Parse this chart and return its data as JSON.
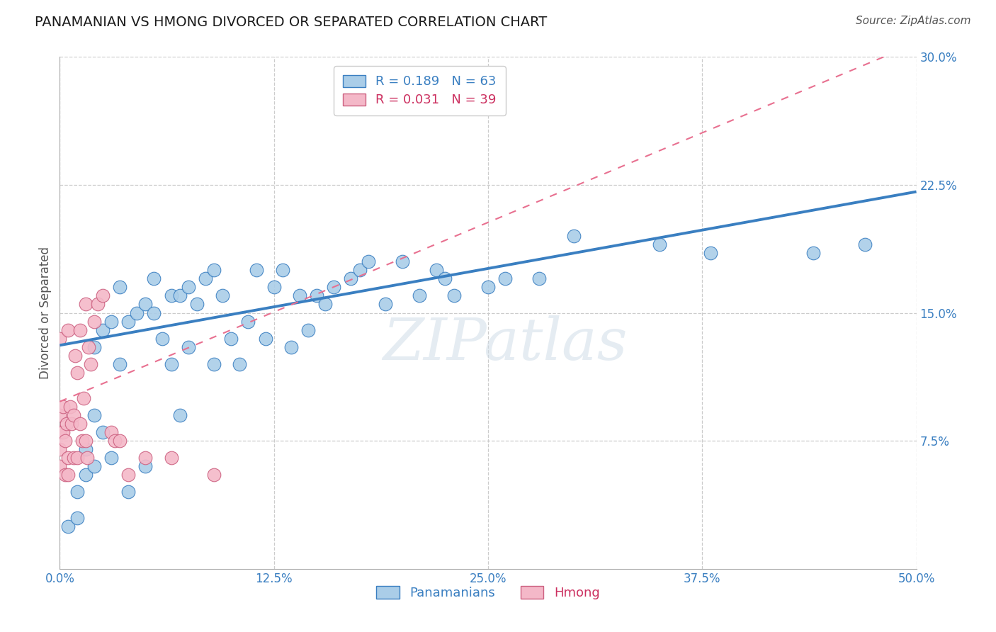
{
  "title": "PANAMANIAN VS HMONG DIVORCED OR SEPARATED CORRELATION CHART",
  "source": "Source: ZipAtlas.com",
  "ylabel_label": "Divorced or Separated",
  "xlim": [
    0.0,
    0.5
  ],
  "ylim": [
    0.0,
    0.3
  ],
  "xticks": [
    0.0,
    0.125,
    0.25,
    0.375,
    0.5
  ],
  "xticklabels": [
    "0.0%",
    "12.5%",
    "25.0%",
    "37.5%",
    "50.0%"
  ],
  "yticks": [
    0.075,
    0.15,
    0.225,
    0.3
  ],
  "yticklabels": [
    "7.5%",
    "15.0%",
    "22.5%",
    "30.0%"
  ],
  "blue_color": "#aacde8",
  "pink_color": "#f4b8c8",
  "blue_line_color": "#3a7fc1",
  "pink_line_color": "#e87090",
  "R_blue": 0.189,
  "N_blue": 63,
  "R_pink": 0.031,
  "N_pink": 39,
  "legend_label_blue": "Panamanians",
  "legend_label_pink": "Hmong",
  "blue_x": [
    0.005,
    0.01,
    0.01,
    0.015,
    0.015,
    0.02,
    0.02,
    0.02,
    0.025,
    0.025,
    0.03,
    0.03,
    0.035,
    0.035,
    0.04,
    0.04,
    0.045,
    0.05,
    0.05,
    0.055,
    0.055,
    0.06,
    0.065,
    0.065,
    0.07,
    0.07,
    0.075,
    0.075,
    0.08,
    0.085,
    0.09,
    0.09,
    0.095,
    0.1,
    0.105,
    0.11,
    0.115,
    0.12,
    0.125,
    0.13,
    0.135,
    0.14,
    0.145,
    0.15,
    0.155,
    0.16,
    0.17,
    0.175,
    0.18,
    0.19,
    0.2,
    0.21,
    0.22,
    0.225,
    0.23,
    0.25,
    0.26,
    0.28,
    0.3,
    0.35,
    0.38,
    0.44,
    0.47
  ],
  "blue_y": [
    0.025,
    0.03,
    0.045,
    0.055,
    0.07,
    0.06,
    0.09,
    0.13,
    0.08,
    0.14,
    0.065,
    0.145,
    0.12,
    0.165,
    0.045,
    0.145,
    0.15,
    0.06,
    0.155,
    0.15,
    0.17,
    0.135,
    0.12,
    0.16,
    0.09,
    0.16,
    0.13,
    0.165,
    0.155,
    0.17,
    0.12,
    0.175,
    0.16,
    0.135,
    0.12,
    0.145,
    0.175,
    0.135,
    0.165,
    0.175,
    0.13,
    0.16,
    0.14,
    0.16,
    0.155,
    0.165,
    0.17,
    0.175,
    0.18,
    0.155,
    0.18,
    0.16,
    0.175,
    0.17,
    0.16,
    0.165,
    0.17,
    0.17,
    0.195,
    0.19,
    0.185,
    0.185,
    0.19
  ],
  "pink_x": [
    0.0,
    0.0,
    0.0,
    0.0,
    0.0,
    0.002,
    0.002,
    0.003,
    0.003,
    0.004,
    0.005,
    0.005,
    0.005,
    0.006,
    0.007,
    0.008,
    0.008,
    0.009,
    0.01,
    0.01,
    0.012,
    0.012,
    0.013,
    0.014,
    0.015,
    0.015,
    0.016,
    0.017,
    0.018,
    0.02,
    0.022,
    0.025,
    0.03,
    0.032,
    0.035,
    0.04,
    0.05,
    0.065,
    0.09
  ],
  "pink_y": [
    0.06,
    0.07,
    0.08,
    0.09,
    0.135,
    0.08,
    0.095,
    0.055,
    0.075,
    0.085,
    0.055,
    0.065,
    0.14,
    0.095,
    0.085,
    0.065,
    0.09,
    0.125,
    0.065,
    0.115,
    0.085,
    0.14,
    0.075,
    0.1,
    0.075,
    0.155,
    0.065,
    0.13,
    0.12,
    0.145,
    0.155,
    0.16,
    0.08,
    0.075,
    0.075,
    0.055,
    0.065,
    0.065,
    0.055
  ],
  "watermark": "ZIPatlas",
  "background_color": "#ffffff",
  "grid_color": "#cccccc",
  "blue_line_intercept": 0.131,
  "blue_line_slope": 0.18,
  "pink_line_intercept": 0.098,
  "pink_line_slope": 0.42
}
